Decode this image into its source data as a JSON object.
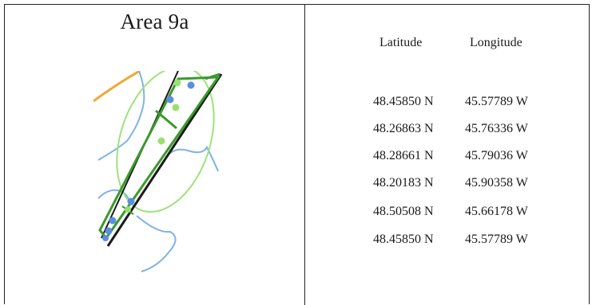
{
  "area_title": "Area 9a",
  "columns": {
    "latitude": "Latitude",
    "longitude": "Longitude"
  },
  "coordinates": [
    {
      "lat": "48.45850 N",
      "lon": "45.57789 W"
    },
    {
      "lat": "48.26863 N",
      "lon": "45.76336 W"
    },
    {
      "lat": "48.28661 N",
      "lon": "45.79036 W"
    },
    {
      "lat": "48.20183 N",
      "lon": "45.90358 W"
    },
    {
      "lat": "48.50508 N",
      "lon": "45.66178 W"
    },
    {
      "lat": "48.45850 N",
      "lon": "45.57789 W"
    }
  ],
  "colors": {
    "area_outline": "#3a9a2a",
    "buffer_ellipse": "#9ee27a",
    "boundary_black": "#1a1a1a",
    "blue_lines": "#7fb2e8",
    "orange_line": "#f0a830",
    "blue_points": "#5b8fe0",
    "green_points": "#9adf70"
  }
}
